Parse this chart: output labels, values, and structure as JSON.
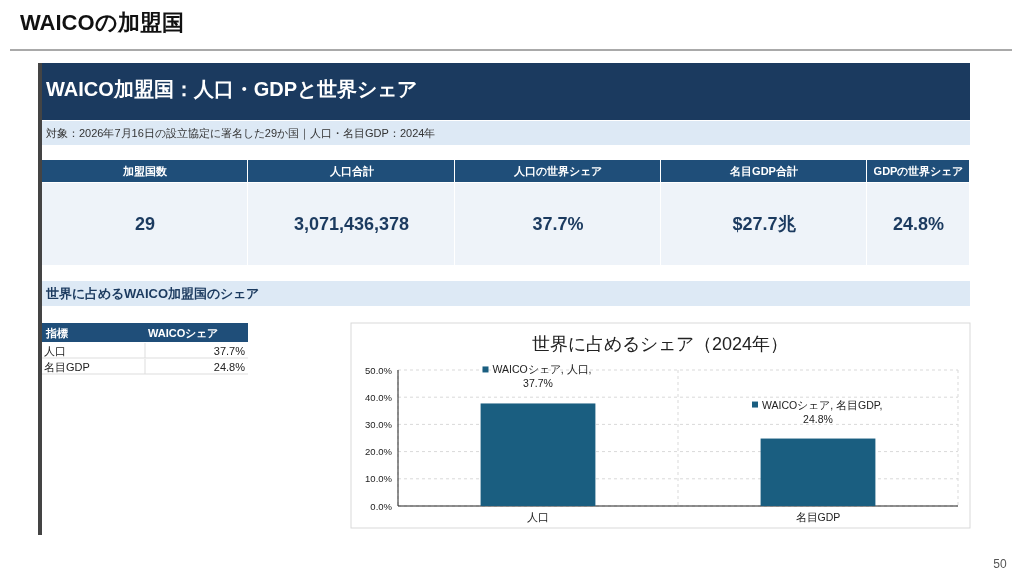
{
  "chart_data": [
    {
      "type": "other",
      "title": "WAICO加盟国：人口・GDPと世界シェア",
      "subtitle": "対象：2026年7月16日の設立協定に署名した29か国｜人口・名目GDP：2024年",
      "categories": [
        "加盟国数",
        "人口合計",
        "人口の世界シェア",
        "名目GDP合計",
        "GDPの世界シェア"
      ],
      "value_labels": [
        "29",
        "3,071,436,378",
        "37.7%",
        "$27.7兆",
        "24.8%"
      ],
      "annotations": [
        "WAICOの加盟国",
        "世界に占めるWAICO加盟国のシェア",
        "50"
      ]
    },
    {
      "type": "other",
      "xlabel": "指標",
      "ylabel": "WAICOシェア",
      "categories": [
        "人口",
        "名目GDP"
      ],
      "value_labels": [
        "37.7%",
        "24.8%"
      ]
    },
    {
      "type": "bar",
      "title": "世界に占めるシェア（2024年）",
      "categories": [
        "人口",
        "名目GDP"
      ],
      "series": [
        {
          "color": "#1a5e80",
          "values": [
            37.7,
            24.8
          ]
        }
      ],
      "value_labels": [
        "WAICOシェア, 人口, 37.7%",
        "WAICOシェア, 名目GDP, 24.8%"
      ],
      "ylim": [
        0,
        50
      ],
      "yticks": [
        {
          "value": 0,
          "label": "0.0%"
        },
        {
          "value": 10,
          "label": "10.0%"
        },
        {
          "value": 20,
          "label": "20.0%"
        },
        {
          "value": 30,
          "label": "30.0%"
        },
        {
          "value": 40,
          "label": "40.0%"
        },
        {
          "value": 50,
          "label": "50.0%"
        }
      ],
      "grid": true
    }
  ]
}
